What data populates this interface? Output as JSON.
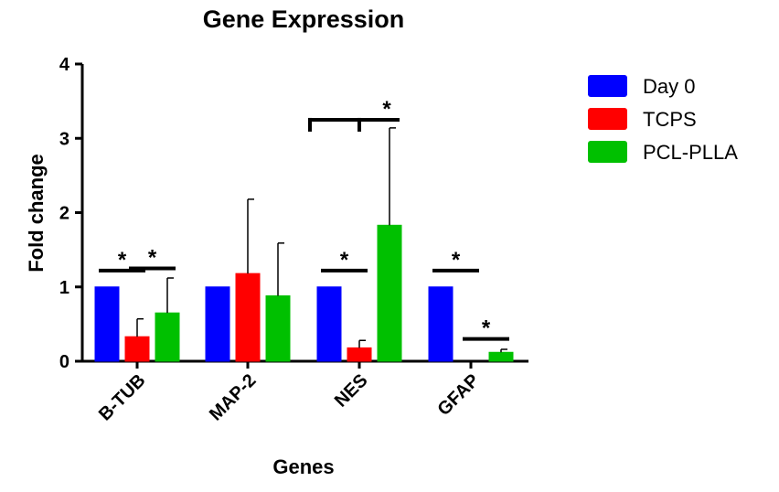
{
  "chart_data": {
    "type": "bar",
    "title": "Gene Expression",
    "xlabel": "Genes",
    "ylabel": "Fold change",
    "ylim": [
      0,
      4
    ],
    "yticks": [
      "0",
      "1",
      "2",
      "3",
      "4"
    ],
    "categories": [
      "B-TUB",
      "MAP-2",
      "NES",
      "GFAP"
    ],
    "legend_position": "top-right",
    "grid": false,
    "series": [
      {
        "name": "Day 0",
        "color": "#0000ff",
        "values": [
          1.0,
          1.0,
          1.0,
          1.0
        ],
        "errors": [
          0,
          0,
          0,
          0
        ]
      },
      {
        "name": "TCPS",
        "color": "#ff0000",
        "values": [
          0.33,
          1.18,
          0.18,
          0
        ],
        "errors": [
          0.24,
          1.0,
          0.1,
          0
        ]
      },
      {
        "name": "PCL-PLLA",
        "color": "#00c000",
        "values": [
          0.65,
          0.88,
          1.83,
          0.12
        ],
        "errors": [
          0.47,
          0.71,
          1.31,
          0.04
        ]
      }
    ],
    "significance_marks": [
      {
        "category": "B-TUB",
        "from_series": 0,
        "to_series": 1,
        "y": 1.22,
        "label": "*"
      },
      {
        "category": "B-TUB",
        "from_series": 1,
        "to_series": 2,
        "y": 1.25,
        "label": "*"
      },
      {
        "category": "NES",
        "from_series": 0,
        "to_series": 1,
        "y": 1.22,
        "label": "*"
      },
      {
        "category": "NES",
        "from_series": 0,
        "to_series": 2,
        "mid_from": 1,
        "y": 3.25,
        "label": "*",
        "bracket": true
      },
      {
        "category": "GFAP",
        "from_series": 0,
        "to_series": 1,
        "y": 1.22,
        "label": "*"
      },
      {
        "category": "GFAP",
        "from_series": 1,
        "to_series": 2,
        "y": 0.3,
        "label": "*"
      }
    ]
  }
}
